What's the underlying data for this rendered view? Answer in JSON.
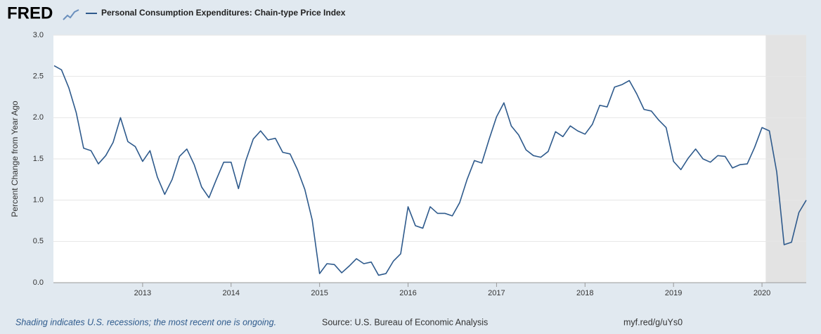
{
  "logo": "FRED",
  "chart_data": {
    "type": "line",
    "ylabel": "Percent Change from Year Ago",
    "note": "Shading indicates U.S. recessions; the most recent one is ongoing.",
    "source": "Source: U.S. Bureau of Economic Analysis",
    "url": "myf.red/g/uYs0",
    "categories": [
      null,
      null,
      null,
      null,
      null,
      null,
      null,
      null,
      null,
      null,
      null,
      null,
      "2013",
      null,
      null,
      null,
      null,
      null,
      null,
      null,
      null,
      null,
      null,
      null,
      "2014",
      null,
      null,
      null,
      null,
      null,
      null,
      null,
      null,
      null,
      null,
      null,
      "2015",
      null,
      null,
      null,
      null,
      null,
      null,
      null,
      null,
      null,
      null,
      null,
      "2016",
      null,
      null,
      null,
      null,
      null,
      null,
      null,
      null,
      null,
      null,
      null,
      "2017",
      null,
      null,
      null,
      null,
      null,
      null,
      null,
      null,
      null,
      null,
      null,
      "2018",
      null,
      null,
      null,
      null,
      null,
      null,
      null,
      null,
      null,
      null,
      null,
      "2019",
      null,
      null,
      null,
      null,
      null,
      null,
      null,
      null,
      null,
      null,
      null,
      "2020",
      null,
      null,
      null,
      null,
      null,
      null
    ],
    "series": [
      {
        "name": "Personal Consumption Expenditures: Chain-type Price Index",
        "color": "#2e5a8c",
        "values": [
          2.63,
          2.58,
          2.36,
          2.06,
          1.63,
          1.6,
          1.44,
          1.54,
          1.7,
          2.0,
          1.71,
          1.65,
          1.47,
          1.6,
          1.28,
          1.07,
          1.25,
          1.53,
          1.62,
          1.43,
          1.16,
          1.03,
          1.25,
          1.46,
          1.46,
          1.14,
          1.48,
          1.74,
          1.84,
          1.73,
          1.75,
          1.58,
          1.56,
          1.37,
          1.13,
          0.76,
          0.11,
          0.23,
          0.22,
          0.12,
          0.2,
          0.29,
          0.23,
          0.25,
          0.09,
          0.11,
          0.26,
          0.35,
          0.92,
          0.69,
          0.66,
          0.92,
          0.84,
          0.84,
          0.81,
          0.97,
          1.25,
          1.48,
          1.45,
          1.74,
          2.01,
          2.18,
          1.9,
          1.79,
          1.61,
          1.54,
          1.52,
          1.59,
          1.83,
          1.77,
          1.9,
          1.84,
          1.8,
          1.92,
          2.15,
          2.13,
          2.37,
          2.4,
          2.45,
          2.29,
          2.1,
          2.08,
          1.97,
          1.88,
          1.47,
          1.37,
          1.51,
          1.62,
          1.5,
          1.46,
          1.54,
          1.53,
          1.39,
          1.43,
          1.44,
          1.64,
          1.88,
          1.84,
          1.34,
          0.46,
          0.49,
          0.85,
          1.0
        ]
      }
    ],
    "recession": {
      "start": 97,
      "end": 102
    },
    "ylim": [
      0,
      3
    ],
    "yticks": [
      {
        "value": 0,
        "label": "0.0"
      },
      0.5,
      {
        "value": 1,
        "label": "1.0"
      },
      1.5,
      {
        "value": 2,
        "label": "2.0"
      },
      2.5,
      {
        "value": 3,
        "label": "3.0"
      }
    ],
    "grid": true
  }
}
